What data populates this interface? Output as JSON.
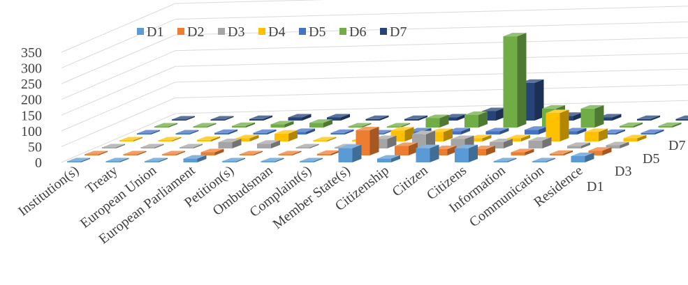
{
  "chart_data": {
    "type": "bar",
    "subtype": "3d-column",
    "title": "",
    "xlabel": "",
    "ylabel": "",
    "ylim": [
      0,
      350
    ],
    "yticks": [
      0,
      50,
      100,
      150,
      200,
      250,
      300,
      350
    ],
    "grid": true,
    "legend": "top-left",
    "categories": [
      "Institution(s)",
      "Treaty",
      "European Union",
      "European Parliament",
      "Petition(s)",
      "Ombudsman",
      "Complaint(s)",
      "Member State(s)",
      "Citizenship",
      "Citizen",
      "Citizens",
      "Information",
      "Communication",
      "Residence"
    ],
    "depth_axis_labels": [
      "D1",
      "D3",
      "D5",
      "D7"
    ],
    "series": [
      {
        "name": "D1",
        "color": "#5B9BD5",
        "values": [
          0,
          0,
          3,
          12,
          3,
          3,
          3,
          45,
          12,
          45,
          45,
          3,
          3,
          20
        ]
      },
      {
        "name": "D2",
        "color": "#ED7D31",
        "values": [
          0,
          0,
          2,
          10,
          2,
          3,
          5,
          80,
          30,
          20,
          20,
          10,
          5,
          15
        ]
      },
      {
        "name": "D3",
        "color": "#A5A5A5",
        "values": [
          0,
          0,
          2,
          20,
          15,
          2,
          2,
          30,
          45,
          30,
          20,
          25,
          8,
          10
        ]
      },
      {
        "name": "D4",
        "color": "#FFC000",
        "values": [
          0,
          3,
          5,
          10,
          25,
          2,
          3,
          35,
          30,
          10,
          10,
          90,
          30,
          10
        ]
      },
      {
        "name": "D5",
        "color": "#4472C4",
        "values": [
          0,
          0,
          5,
          5,
          8,
          5,
          3,
          10,
          10,
          10,
          15,
          10,
          5,
          5
        ]
      },
      {
        "name": "D6",
        "color": "#70AD47",
        "values": [
          2,
          3,
          5,
          10,
          15,
          3,
          3,
          30,
          40,
          290,
          60,
          60,
          5,
          5
        ]
      },
      {
        "name": "D7",
        "color": "#264478",
        "values": [
          3,
          3,
          5,
          10,
          10,
          5,
          5,
          10,
          30,
          120,
          15,
          10,
          5,
          5
        ]
      }
    ]
  }
}
